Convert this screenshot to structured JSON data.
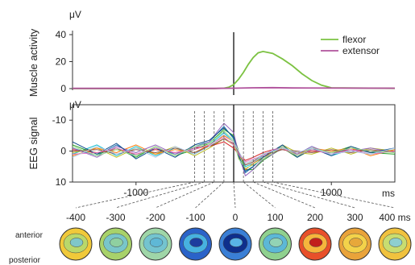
{
  "chart_data": [
    {
      "type": "line",
      "panel": "muscle",
      "ylabel": "Muscle activity",
      "unit": "μV",
      "ylim": [
        0,
        40
      ],
      "yticks": [
        0,
        20,
        40
      ],
      "xlim": [
        -1650,
        1650
      ],
      "legend": "top-right",
      "series": [
        {
          "name": "flexor",
          "color": "#7cc242",
          "x": [
            -1650,
            -200,
            -100,
            -50,
            0,
            50,
            100,
            150,
            200,
            250,
            300,
            400,
            500,
            600,
            700,
            800,
            900,
            1000,
            1650
          ],
          "values": [
            0,
            0,
            0.3,
            1.0,
            3,
            7,
            12,
            18,
            23,
            26.5,
            27.5,
            26,
            22,
            17,
            11,
            6,
            2.5,
            0.6,
            0.2
          ]
        },
        {
          "name": "extensor",
          "color": "#b0529c",
          "x": [
            -1650,
            -200,
            0,
            200,
            400,
            600,
            1650
          ],
          "values": [
            0.2,
            0.2,
            0.3,
            0.6,
            0.7,
            0.5,
            0.3
          ]
        }
      ]
    },
    {
      "type": "line",
      "panel": "eeg",
      "ylabel": "EEG signal",
      "unit": "μV",
      "ylim": [
        10,
        -15
      ],
      "yticks": [
        -10,
        0,
        10
      ],
      "xlim": [
        -1650,
        1650
      ],
      "xticks": [
        -1000,
        1000
      ],
      "xunit": "ms",
      "markers": [
        -400,
        -300,
        -200,
        -100,
        0,
        100,
        200,
        300,
        400
      ],
      "series": [
        {
          "color": "#1f77b4",
          "x": [
            -1650,
            -1400,
            -1200,
            -1000,
            -800,
            -600,
            -400,
            -250,
            -100,
            0,
            50,
            120,
            200,
            300,
            400,
            500,
            650,
            800,
            1000,
            1200,
            1400,
            1650
          ],
          "values": [
            -1,
            1.5,
            -2,
            1.5,
            -1,
            1,
            -1.5,
            -3,
            -8,
            -4,
            2,
            7,
            5,
            2,
            0,
            -1.5,
            1.5,
            -1,
            1,
            -1,
            0.5,
            0
          ]
        },
        {
          "color": "#17becf",
          "x": [
            -1650,
            -1400,
            -1200,
            -1000,
            -800,
            -600,
            -400,
            -250,
            -100,
            0,
            50,
            120,
            200,
            300,
            400,
            500,
            650,
            800,
            1000,
            1200,
            1400,
            1650
          ],
          "values": [
            1,
            -2,
            1.5,
            -1.5,
            1.5,
            -1,
            1,
            -2,
            -6,
            -3,
            1,
            5,
            4,
            1.5,
            -0.5,
            -1,
            1,
            -1.5,
            1.5,
            -0.5,
            1,
            -0.5
          ]
        },
        {
          "color": "#2ca02c",
          "x": [
            -1650,
            -1400,
            -1200,
            -1000,
            -800,
            -600,
            -400,
            -250,
            -100,
            0,
            50,
            120,
            200,
            300,
            400,
            500,
            650,
            800,
            1000,
            1200,
            1400,
            1650
          ],
          "values": [
            -2,
            1,
            -1,
            2,
            -1.5,
            1.5,
            -0.5,
            -2.5,
            -7,
            -5,
            0,
            6,
            6,
            3,
            1,
            -1,
            2,
            -0.5,
            0.5,
            -1.5,
            0.5,
            1
          ]
        },
        {
          "color": "#bcbd22",
          "x": [
            -1650,
            -1400,
            -1200,
            -1000,
            -800,
            -600,
            -400,
            -250,
            -100,
            0,
            50,
            120,
            200,
            300,
            400,
            500,
            650,
            800,
            1000,
            1200,
            1400,
            1650
          ],
          "values": [
            0.5,
            -1,
            2,
            -1,
            1,
            -1.5,
            1.5,
            -1,
            -4,
            -2,
            1.5,
            4,
            3,
            1,
            0,
            -2,
            0.5,
            1,
            -1,
            1,
            -1,
            0
          ]
        },
        {
          "color": "#d62728",
          "x": [
            -1650,
            -1400,
            -1200,
            -1000,
            -800,
            -600,
            -400,
            -250,
            -100,
            0,
            50,
            120,
            200,
            300,
            400,
            500,
            650,
            800,
            1000,
            1200,
            1400,
            1650
          ],
          "values": [
            -0.5,
            0.5,
            -0.5,
            1,
            -0.5,
            0.5,
            -1,
            -1.5,
            -3,
            -1,
            1,
            3,
            2,
            0.5,
            -0.5,
            -0.5,
            0.5,
            0,
            0.5,
            -0.5,
            0,
            0
          ]
        },
        {
          "color": "#ff7f0e",
          "x": [
            -1650,
            -1400,
            -1200,
            -1000,
            -800,
            -600,
            -400,
            -250,
            -100,
            0,
            50,
            120,
            200,
            300,
            400,
            500,
            650,
            800,
            1000,
            1200,
            1400,
            1650
          ],
          "values": [
            1.5,
            -1,
            0.5,
            -2,
            1,
            -0.5,
            0.5,
            -2,
            -5,
            -3,
            2,
            6,
            4,
            2,
            0.5,
            -1,
            1,
            -1,
            0,
            -1,
            1.5,
            -0.5
          ]
        },
        {
          "color": "#9467bd",
          "x": [
            -1650,
            -1400,
            -1200,
            -1000,
            -800,
            -600,
            -400,
            -250,
            -100,
            0,
            50,
            120,
            200,
            300,
            400,
            500,
            650,
            800,
            1000,
            1200,
            1400,
            1650
          ],
          "values": [
            -1,
            2,
            -1.5,
            0.5,
            -2,
            1,
            -1,
            -3,
            -9,
            -6,
            1,
            8,
            6,
            2.5,
            1,
            -1.5,
            1,
            -1.5,
            1,
            0,
            -1,
            0.5
          ]
        },
        {
          "color": "#0b4a8a",
          "x": [
            -1650,
            -1400,
            -1200,
            -1000,
            -800,
            -600,
            -400,
            -250,
            -100,
            0,
            50,
            120,
            200,
            300,
            400,
            500,
            650,
            800,
            1000,
            1200,
            1400,
            1650
          ],
          "values": [
            -3,
            1,
            -2.5,
            2.5,
            -1,
            2,
            -2,
            -3.5,
            -7.5,
            -4.5,
            1.5,
            6.5,
            5,
            2,
            0,
            -2,
            2,
            -1,
            1.5,
            -1.5,
            0.5,
            -1
          ]
        },
        {
          "color": "#8c564b",
          "x": [
            -1650,
            -1400,
            -1200,
            -1000,
            -800,
            -600,
            -400,
            -250,
            -100,
            0,
            50,
            120,
            200,
            300,
            400,
            500,
            650,
            800,
            1000,
            1200,
            1400,
            1650
          ],
          "values": [
            0,
            -0.5,
            1,
            -0.5,
            0.5,
            -1,
            0.5,
            -1.5,
            -4,
            -2.5,
            0.5,
            4.5,
            3.5,
            1,
            0.5,
            -0.5,
            0,
            0.5,
            -0.5,
            0.5,
            -0.5,
            0.5
          ]
        },
        {
          "color": "#e377c2",
          "x": [
            -1650,
            -1400,
            -1200,
            -1000,
            -800,
            -600,
            -400,
            -250,
            -100,
            0,
            50,
            120,
            200,
            300,
            400,
            500,
            650,
            800,
            1000,
            1200,
            1400,
            1650
          ],
          "values": [
            1,
            0.5,
            -1,
            1,
            -1,
            0.5,
            -0.5,
            -2,
            -4.5,
            -2,
            1,
            3.5,
            2.5,
            1.5,
            -0.5,
            -1,
            1.5,
            -0.5,
            1,
            -0.5,
            1,
            0
          ]
        },
        {
          "color": "#98df8a",
          "x": [
            -1650,
            -1400,
            -1200,
            -1000,
            -800,
            -600,
            -400,
            -250,
            -100,
            0,
            50,
            120,
            200,
            300,
            400,
            500,
            650,
            800,
            1000,
            1200,
            1400,
            1650
          ],
          "values": [
            -1.5,
            1.5,
            -0.5,
            1.5,
            -1.5,
            1.5,
            -1.5,
            -2.5,
            -6.5,
            -3.5,
            2.5,
            5.5,
            4.5,
            2.5,
            0.5,
            -1.5,
            1.5,
            -1,
            0.5,
            -1,
            0,
            0.5
          ]
        },
        {
          "color": "#aec7e8",
          "x": [
            -1650,
            -1400,
            -1200,
            -1000,
            -800,
            -600,
            -400,
            -250,
            -100,
            0,
            50,
            120,
            200,
            300,
            400,
            500,
            650,
            800,
            1000,
            1200,
            1400,
            1650
          ],
          "values": [
            2,
            -1.5,
            1,
            -1,
            2,
            -1.5,
            1,
            -1.5,
            -5.5,
            -3,
            0,
            4,
            3,
            1,
            0,
            -1,
            0.5,
            -1,
            1,
            0,
            1,
            -1
          ]
        }
      ]
    },
    {
      "type": "heatmap",
      "panel": "topography",
      "times": [
        -400,
        -300,
        -200,
        -100,
        0,
        100,
        200,
        300,
        400
      ],
      "time_unit": "ms",
      "row_labels": [
        "anterior",
        "posterior"
      ],
      "maps": [
        {
          "outer": "#f0c93a",
          "mid": "#b9d86a",
          "inner": "#7fc7c9"
        },
        {
          "outer": "#a8d26a",
          "mid": "#79c6c9",
          "inner": "#8fd0a0"
        },
        {
          "outer": "#9fd6a8",
          "mid": "#74c4cf",
          "inner": "#5fb8d6"
        },
        {
          "outer": "#2a63c9",
          "mid": "#47b2e0",
          "inner": "#1d3d9e"
        },
        {
          "outer": "#3a7fd6",
          "mid": "#0e2f8c",
          "inner": "#58b3e6"
        },
        {
          "outer": "#8fd18f",
          "mid": "#5cb8d6",
          "inner": "#93d3b5"
        },
        {
          "outer": "#e8502a",
          "mid": "#f6b53c",
          "inner": "#c2201c"
        },
        {
          "outer": "#e9a33a",
          "mid": "#f3d24a",
          "inner": "#e7a83a"
        },
        {
          "outer": "#f0c23e",
          "mid": "#c8dd70",
          "inner": "#8ecfcf"
        }
      ]
    }
  ]
}
